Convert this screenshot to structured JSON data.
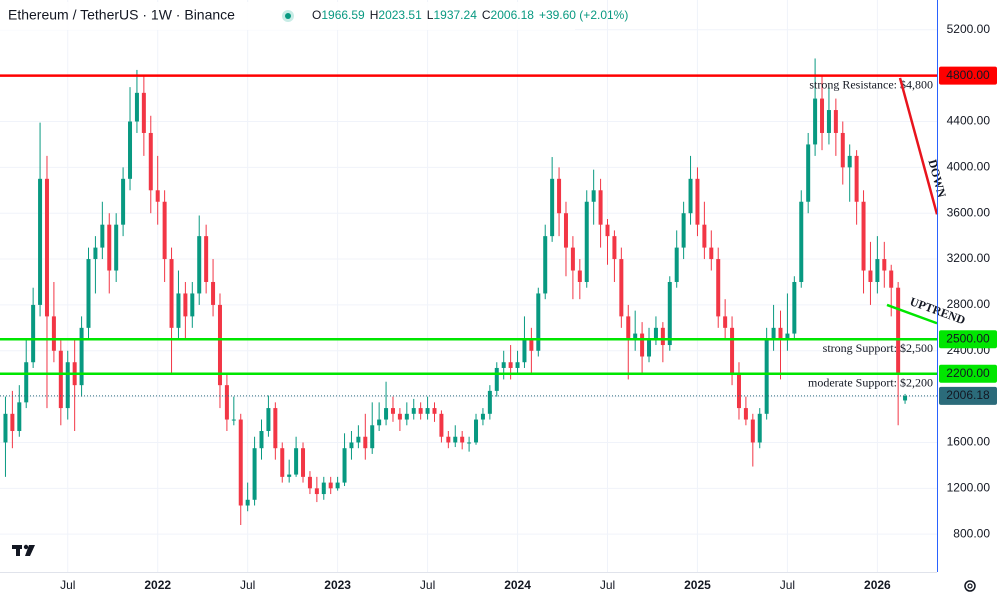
{
  "chart_data": {
    "type": "candlestick",
    "title": "Ethereum / TetherUS · 1W · Binance",
    "ohlc_labels": [
      "O",
      "H",
      "L",
      "C"
    ],
    "change": "+39.60 (+2.01%)",
    "up_color": "#089981",
    "down_color": "#f23645",
    "categories": [
      null,
      null,
      null,
      null,
      null,
      null,
      null,
      null,
      null,
      "Jul",
      null,
      null,
      null,
      null,
      null,
      null,
      null,
      null,
      null,
      null,
      null,
      null,
      "2022",
      null,
      null,
      null,
      null,
      null,
      null,
      null,
      null,
      null,
      null,
      null,
      null,
      "Jul",
      null,
      null,
      null,
      null,
      null,
      null,
      null,
      null,
      null,
      null,
      null,
      null,
      "2023",
      null,
      null,
      null,
      null,
      null,
      null,
      null,
      null,
      null,
      null,
      null,
      null,
      "Jul",
      null,
      null,
      null,
      null,
      null,
      null,
      null,
      null,
      null,
      null,
      null,
      null,
      "2024",
      null,
      null,
      null,
      null,
      null,
      null,
      null,
      null,
      null,
      null,
      null,
      null,
      "Jul",
      null,
      null,
      null,
      null,
      null,
      null,
      null,
      null,
      null,
      null,
      null,
      null,
      "2025",
      null,
      null,
      null,
      null,
      null,
      null,
      null,
      null,
      null,
      null,
      null,
      null,
      "Jul",
      null,
      null,
      null,
      null,
      null,
      null,
      null,
      null,
      null,
      null,
      null,
      null,
      "2026",
      null,
      null,
      null,
      null
    ],
    "ohlc": [
      [
        1600,
        2000,
        1300,
        1850
      ],
      [
        1850,
        2050,
        1550,
        1700
      ],
      [
        1700,
        2100,
        1650,
        1950
      ],
      [
        1950,
        2500,
        1900,
        2300
      ],
      [
        2300,
        2950,
        2250,
        2800
      ],
      [
        2800,
        4390,
        2700,
        3900
      ],
      [
        3900,
        4100,
        1900,
        2700
      ],
      [
        2700,
        3000,
        2300,
        2400
      ],
      [
        2400,
        2500,
        1750,
        1900
      ],
      [
        1900,
        2400,
        1800,
        2300
      ],
      [
        2300,
        2500,
        1700,
        2100
      ],
      [
        2100,
        2700,
        2000,
        2600
      ],
      [
        2600,
        3300,
        2500,
        3200
      ],
      [
        3200,
        3400,
        2900,
        3300
      ],
      [
        3300,
        3700,
        3200,
        3500
      ],
      [
        3500,
        3600,
        2900,
        3100
      ],
      [
        3100,
        3600,
        3000,
        3500
      ],
      [
        3500,
        4000,
        3400,
        3900
      ],
      [
        3900,
        4700,
        3800,
        4400
      ],
      [
        4400,
        4850,
        4300,
        4650
      ],
      [
        4650,
        4800,
        4100,
        4300
      ],
      [
        4300,
        4450,
        3600,
        3800
      ],
      [
        3800,
        4100,
        3500,
        3700
      ],
      [
        3700,
        3800,
        3000,
        3200
      ],
      [
        3200,
        3300,
        2200,
        2600
      ],
      [
        2600,
        3100,
        2500,
        2900
      ],
      [
        2900,
        3000,
        2500,
        2700
      ],
      [
        2700,
        3000,
        2600,
        2900
      ],
      [
        2900,
        3580,
        2800,
        3400
      ],
      [
        3400,
        3500,
        2900,
        3000
      ],
      [
        3000,
        3200,
        2700,
        2800
      ],
      [
        2800,
        2900,
        1900,
        2100
      ],
      [
        2100,
        2200,
        1700,
        1800
      ],
      [
        1800,
        2000,
        1750,
        1800
      ],
      [
        1800,
        1850,
        880,
        1050
      ],
      [
        1050,
        1250,
        1000,
        1100
      ],
      [
        1100,
        1650,
        1050,
        1550
      ],
      [
        1550,
        1800,
        1450,
        1700
      ],
      [
        1700,
        2010,
        1650,
        1900
      ],
      [
        1900,
        1950,
        1450,
        1550
      ],
      [
        1550,
        1600,
        1250,
        1300
      ],
      [
        1300,
        1450,
        1250,
        1320
      ],
      [
        1320,
        1650,
        1300,
        1550
      ],
      [
        1550,
        1600,
        1250,
        1300
      ],
      [
        1300,
        1350,
        1150,
        1200
      ],
      [
        1200,
        1300,
        1080,
        1150
      ],
      [
        1150,
        1300,
        1100,
        1250
      ],
      [
        1250,
        1300,
        1150,
        1200
      ],
      [
        1200,
        1300,
        1180,
        1250
      ],
      [
        1250,
        1680,
        1220,
        1550
      ],
      [
        1550,
        1700,
        1450,
        1600
      ],
      [
        1600,
        1750,
        1550,
        1650
      ],
      [
        1650,
        1850,
        1450,
        1550
      ],
      [
        1550,
        1950,
        1500,
        1750
      ],
      [
        1750,
        1950,
        1700,
        1800
      ],
      [
        1800,
        2130,
        1750,
        1900
      ],
      [
        1900,
        2000,
        1780,
        1850
      ],
      [
        1850,
        1900,
        1700,
        1800
      ],
      [
        1800,
        1950,
        1750,
        1850
      ],
      [
        1850,
        1980,
        1800,
        1900
      ],
      [
        1900,
        1950,
        1800,
        1850
      ],
      [
        1850,
        2000,
        1800,
        1900
      ],
      [
        1900,
        1950,
        1780,
        1850
      ],
      [
        1850,
        1880,
        1600,
        1650
      ],
      [
        1650,
        1700,
        1550,
        1600
      ],
      [
        1600,
        1750,
        1560,
        1650
      ],
      [
        1650,
        1700,
        1540,
        1600
      ],
      [
        1600,
        1650,
        1520,
        1600
      ],
      [
        1600,
        1850,
        1580,
        1800
      ],
      [
        1800,
        1900,
        1750,
        1850
      ],
      [
        1850,
        2100,
        1800,
        2050
      ],
      [
        2050,
        2300,
        2000,
        2250
      ],
      [
        2250,
        2400,
        2150,
        2300
      ],
      [
        2300,
        2450,
        2150,
        2250
      ],
      [
        2250,
        2400,
        2200,
        2300
      ],
      [
        2300,
        2700,
        2250,
        2500
      ],
      [
        2500,
        2600,
        2200,
        2400
      ],
      [
        2400,
        2950,
        2350,
        2900
      ],
      [
        2900,
        3500,
        2850,
        3400
      ],
      [
        3400,
        4090,
        3350,
        3900
      ],
      [
        3900,
        4000,
        3400,
        3600
      ],
      [
        3600,
        3700,
        3050,
        3300
      ],
      [
        3300,
        3400,
        2850,
        3100
      ],
      [
        3100,
        3200,
        2850,
        3000
      ],
      [
        3000,
        3800,
        2950,
        3700
      ],
      [
        3700,
        3980,
        3500,
        3800
      ],
      [
        3800,
        3900,
        3300,
        3500
      ],
      [
        3500,
        3550,
        3150,
        3400
      ],
      [
        3400,
        3450,
        3000,
        3200
      ],
      [
        3200,
        3300,
        2600,
        2700
      ],
      [
        2700,
        2800,
        2150,
        2500
      ],
      [
        2500,
        2750,
        2400,
        2550
      ],
      [
        2550,
        2650,
        2200,
        2350
      ],
      [
        2350,
        2600,
        2300,
        2500
      ],
      [
        2500,
        2700,
        2450,
        2600
      ],
      [
        2600,
        2650,
        2300,
        2450
      ],
      [
        2450,
        3050,
        2400,
        3000
      ],
      [
        3000,
        3450,
        2950,
        3300
      ],
      [
        3300,
        3700,
        3200,
        3600
      ],
      [
        3600,
        4100,
        3500,
        3900
      ],
      [
        3900,
        4000,
        3400,
        3500
      ],
      [
        3500,
        3700,
        3200,
        3300
      ],
      [
        3300,
        3450,
        3100,
        3200
      ],
      [
        3200,
        3300,
        2600,
        2700
      ],
      [
        2700,
        2850,
        2500,
        2600
      ],
      [
        2600,
        2700,
        2100,
        2200
      ],
      [
        2200,
        2300,
        1800,
        1900
      ],
      [
        1900,
        2000,
        1750,
        1800
      ],
      [
        1800,
        1850,
        1390,
        1600
      ],
      [
        1600,
        1900,
        1550,
        1850
      ],
      [
        1850,
        2600,
        1800,
        2500
      ],
      [
        2500,
        2800,
        2400,
        2600
      ],
      [
        2600,
        2750,
        2150,
        2500
      ],
      [
        2500,
        2900,
        2400,
        2550
      ],
      [
        2550,
        3050,
        2500,
        3000
      ],
      [
        3000,
        3800,
        2950,
        3700
      ],
      [
        3700,
        4300,
        3600,
        4200
      ],
      [
        4200,
        4950,
        4100,
        4600
      ],
      [
        4600,
        4800,
        4150,
        4300
      ],
      [
        4300,
        4700,
        4200,
        4500
      ],
      [
        4500,
        4600,
        4100,
        4300
      ],
      [
        4300,
        4400,
        3850,
        4000
      ],
      [
        4000,
        4200,
        3700,
        4100
      ],
      [
        4100,
        4150,
        3500,
        3700
      ],
      [
        3700,
        3800,
        2900,
        3100
      ],
      [
        3100,
        3350,
        2800,
        3000
      ],
      [
        3000,
        3400,
        2900,
        3200
      ],
      [
        3200,
        3350,
        2950,
        3100
      ],
      [
        3100,
        3150,
        2700,
        2950
      ],
      [
        2950,
        3000,
        1750,
        2200
      ],
      [
        1966.59,
        2023.51,
        1937.24,
        2006.18
      ]
    ],
    "ylim": [
      470,
      5460
    ],
    "yticks": [
      {
        "value": 800,
        "label": "800.00"
      },
      {
        "value": 1200,
        "label": "1200.00"
      },
      {
        "value": 1600,
        "label": "1600.00"
      },
      {
        "value": 2000,
        "label": "2000.00"
      },
      {
        "value": 2400,
        "label": "2400.00"
      },
      {
        "value": 2800,
        "label": "2800.00"
      },
      {
        "value": 3200,
        "label": "3200.00"
      },
      {
        "value": 3600,
        "label": "3600.00"
      },
      {
        "value": 4000,
        "label": "4000.00"
      },
      {
        "value": 4400,
        "label": "4400.00"
      },
      {
        "value": 4800,
        "label": "4800.00"
      },
      {
        "value": 5200,
        "label": "5200.00"
      }
    ],
    "grid": true,
    "levels": [
      {
        "label": "strong Resistance: $4,800",
        "value": 4800,
        "value_label": "4800.00",
        "color": "#ff0000"
      },
      {
        "label": "strong Support: $2,500",
        "value": 2500,
        "value_label": "2500.00",
        "color": "#00e600"
      },
      {
        "label": "moderate Support: $2,200",
        "value": 2200,
        "value_label": "2200.00",
        "color": "#00e600"
      }
    ],
    "trendlines": [
      {
        "label": "DOWN",
        "color": "#e8141d",
        "values": [
          4780,
          3590
        ]
      },
      {
        "label": "UPTREND",
        "color": "#00e600",
        "values": [
          2800,
          2640
        ]
      }
    ]
  }
}
